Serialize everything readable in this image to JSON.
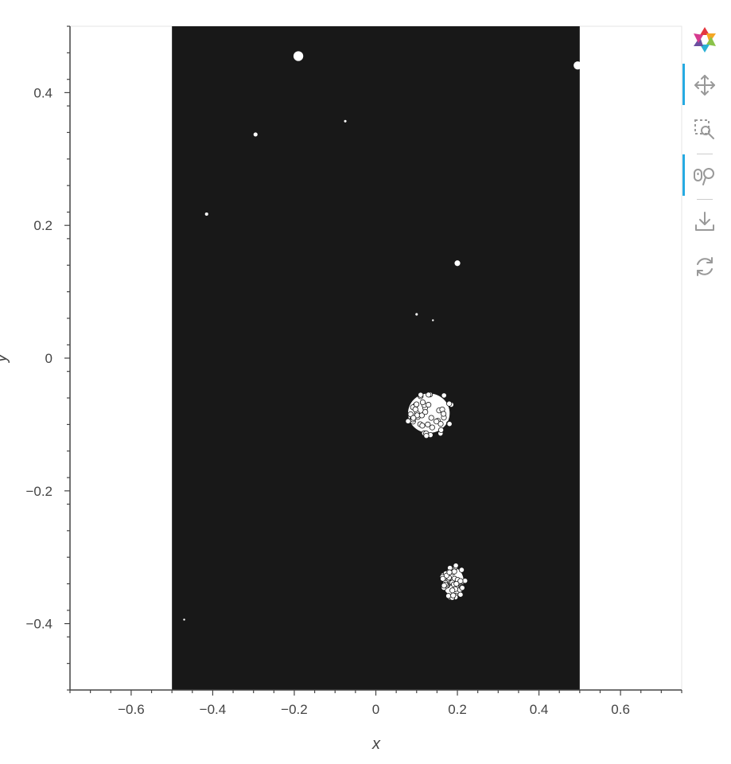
{
  "chart_data": {
    "type": "image",
    "title": "",
    "xlabel": "x",
    "ylabel": "y",
    "xlim": [
      -0.75,
      0.75
    ],
    "ylim": [
      -0.5,
      0.5
    ],
    "x_ticks": [
      -0.6,
      -0.4,
      -0.2,
      0,
      0.2,
      0.4,
      0.6
    ],
    "x_tick_labels": [
      "−0.6",
      "−0.4",
      "−0.2",
      "0",
      "0.2",
      "0.4",
      "0.6"
    ],
    "y_ticks": [
      0.4,
      0.2,
      0,
      -0.2,
      -0.4
    ],
    "y_tick_labels": [
      "0.4",
      "0.2",
      "0",
      "−0.2",
      "−0.4"
    ],
    "image_extent": {
      "x": [
        -0.5,
        0.5
      ],
      "y": [
        -0.5,
        0.5
      ]
    },
    "background_color": "#181818",
    "point_color": "#ffffff",
    "points": [
      {
        "x": -0.19,
        "y": 0.455,
        "r": 0.012
      },
      {
        "x": 0.495,
        "y": 0.441,
        "r": 0.01
      },
      {
        "x": -0.295,
        "y": 0.337,
        "r": 0.005
      },
      {
        "x": -0.075,
        "y": 0.357,
        "r": 0.003
      },
      {
        "x": -0.415,
        "y": 0.217,
        "r": 0.004
      },
      {
        "x": 0.2,
        "y": 0.143,
        "r": 0.007
      },
      {
        "x": 0.1,
        "y": 0.066,
        "r": 0.003
      },
      {
        "x": 0.14,
        "y": 0.057,
        "r": 0.002
      },
      {
        "x": -0.47,
        "y": -0.394,
        "r": 0.002
      }
    ],
    "clusters": [
      {
        "x": 0.13,
        "y": -0.083,
        "rx": 0.06,
        "ry": 0.035
      },
      {
        "x": 0.19,
        "y": -0.337,
        "rx": 0.03,
        "ry": 0.025
      }
    ]
  },
  "toolbar": {
    "logo": "bokeh-logo-icon",
    "tools": [
      {
        "name": "pan-tool",
        "icon": "move-icon",
        "active": true
      },
      {
        "name": "box-zoom-tool",
        "icon": "box-zoom-icon",
        "active": false
      },
      {
        "name": "wheel-zoom-tool",
        "icon": "wheel-zoom-icon",
        "active": true
      },
      {
        "name": "save-tool",
        "icon": "download-icon",
        "active": false
      },
      {
        "name": "reset-tool",
        "icon": "reset-icon",
        "active": false
      }
    ],
    "accent_color": "#26aae1"
  }
}
